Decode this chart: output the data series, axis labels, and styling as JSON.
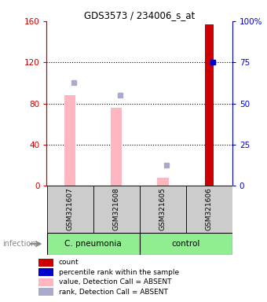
{
  "title": "GDS3573 / 234006_s_at",
  "samples": [
    "GSM321607",
    "GSM321608",
    "GSM321605",
    "GSM321606"
  ],
  "bar_values_pink": [
    88,
    76,
    8,
    0
  ],
  "bar_values_red": [
    0,
    0,
    0,
    157
  ],
  "rank_values_absent": [
    100,
    88,
    20,
    null
  ],
  "rank_values_present": [
    null,
    null,
    null,
    120
  ],
  "bar_color_red": "#CC0000",
  "bar_color_pink": "#FFB6C1",
  "rank_color_absent": "#AAAACC",
  "rank_color_present": "#0000CC",
  "ylim": [
    0,
    160
  ],
  "yticks_left": [
    0,
    40,
    80,
    120,
    160
  ],
  "yticks_left_labels": [
    "0",
    "40",
    "80",
    "120",
    "160"
  ],
  "yticks_right": [
    0,
    40,
    80,
    120,
    160
  ],
  "yticks_right_labels": [
    "0",
    "25",
    "50",
    "75",
    "100%"
  ],
  "left_axis_color": "#CC0000",
  "right_axis_color": "#0000CC",
  "background_color": "#FFFFFF",
  "sample_bg_color": "#CCCCCC",
  "group_green": "#90EE90",
  "legend_labels": [
    "count",
    "percentile rank within the sample",
    "value, Detection Call = ABSENT",
    "rank, Detection Call = ABSENT"
  ],
  "legend_colors": [
    "#CC0000",
    "#0000CC",
    "#FFB6C1",
    "#AAAACC"
  ]
}
